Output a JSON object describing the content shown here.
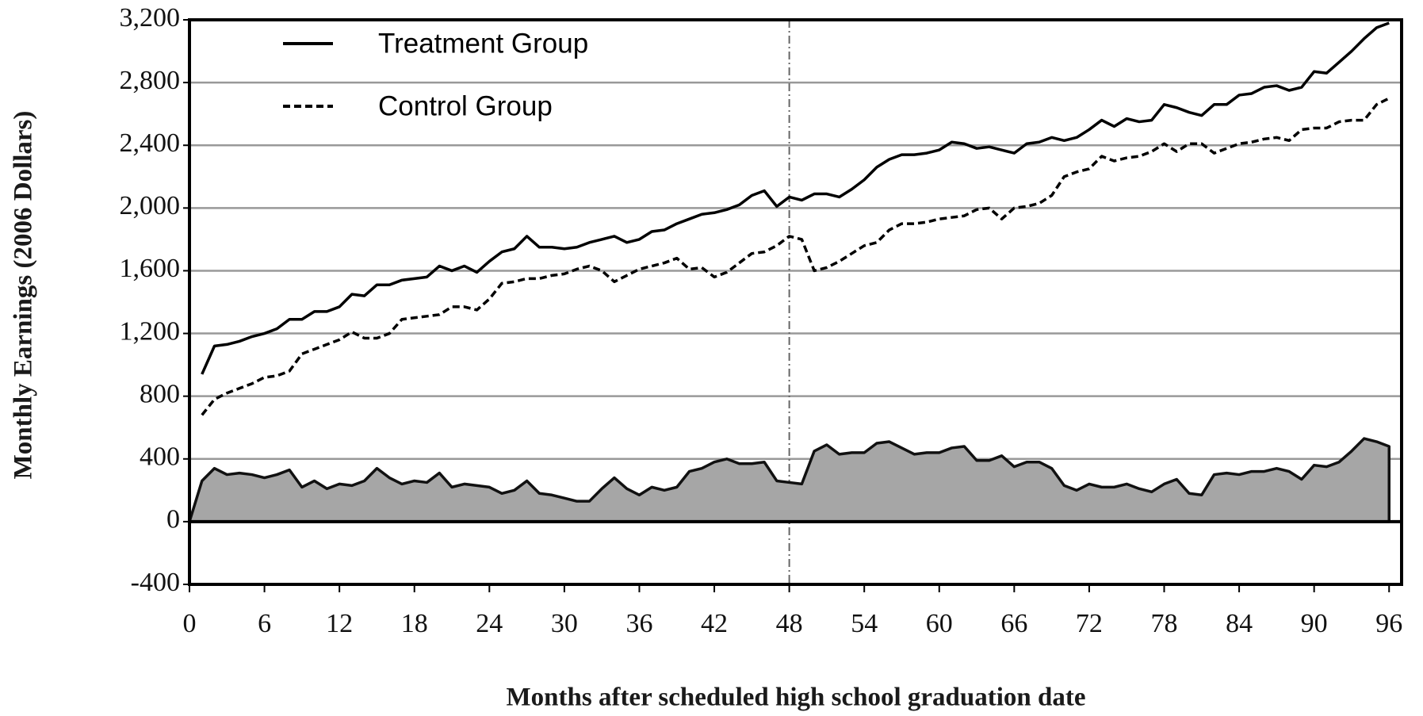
{
  "chart_data": {
    "type": "line",
    "xlabel": "Months after scheduled high school graduation date",
    "ylabel": "Monthly Earnings (2006 Dollars)",
    "xlim": [
      0,
      97
    ],
    "xticks": [
      0,
      6,
      12,
      18,
      24,
      30,
      36,
      42,
      48,
      54,
      60,
      66,
      72,
      78,
      84,
      90,
      96
    ],
    "ylim": [
      -400,
      3200
    ],
    "yticks": [
      -400,
      0,
      400,
      800,
      {
        "value": 1200,
        "label": "1,200"
      },
      {
        "value": 1600,
        "label": "1,600"
      },
      {
        "value": 2000,
        "label": "2,000"
      },
      {
        "value": 2400,
        "label": "2,400"
      },
      {
        "value": 2800,
        "label": "2,800"
      },
      {
        "value": 3200,
        "label": "3,200"
      }
    ],
    "grid": true,
    "legend": "upper left",
    "reference_line_x": 48,
    "series": [
      {
        "name": "Treatment Group",
        "color": "#000000",
        "style": "solid",
        "x": [
          1,
          2,
          3,
          4,
          5,
          6,
          7,
          8,
          9,
          10,
          11,
          12,
          13,
          14,
          15,
          16,
          17,
          18,
          19,
          20,
          21,
          22,
          23,
          24,
          25,
          26,
          27,
          28,
          29,
          30,
          31,
          32,
          33,
          34,
          35,
          36,
          37,
          38,
          39,
          40,
          41,
          42,
          43,
          44,
          45,
          46,
          47,
          48,
          49,
          50,
          51,
          52,
          53,
          54,
          55,
          56,
          57,
          58,
          59,
          60,
          61,
          62,
          63,
          64,
          65,
          66,
          67,
          68,
          69,
          70,
          71,
          72,
          73,
          74,
          75,
          76,
          77,
          78,
          79,
          80,
          81,
          82,
          83,
          84,
          85,
          86,
          87,
          88,
          89,
          90,
          91,
          92,
          93,
          94,
          95,
          96
        ],
        "values": [
          940,
          1120,
          1130,
          1150,
          1180,
          1200,
          1230,
          1290,
          1290,
          1340,
          1340,
          1370,
          1450,
          1440,
          1510,
          1510,
          1540,
          1550,
          1560,
          1630,
          1600,
          1630,
          1590,
          1660,
          1720,
          1740,
          1820,
          1750,
          1750,
          1740,
          1750,
          1780,
          1800,
          1820,
          1780,
          1800,
          1850,
          1860,
          1900,
          1930,
          1960,
          1970,
          1990,
          2020,
          2080,
          2110,
          2010,
          2070,
          2050,
          2090,
          2090,
          2070,
          2120,
          2180,
          2260,
          2310,
          2340,
          2340,
          2350,
          2370,
          2420,
          2410,
          2380,
          2390,
          2370,
          2350,
          2410,
          2420,
          2450,
          2430,
          2450,
          2500,
          2560,
          2520,
          2570,
          2550,
          2560,
          2660,
          2640,
          2610,
          2590,
          2660,
          2660,
          2720,
          2730,
          2770,
          2780,
          2750,
          2770,
          2870,
          2860,
          2930,
          3000,
          3080,
          3150,
          3180
        ]
      },
      {
        "name": "Control Group",
        "color": "#000000",
        "style": "dashed",
        "x": [
          1,
          2,
          3,
          4,
          5,
          6,
          7,
          8,
          9,
          10,
          11,
          12,
          13,
          14,
          15,
          16,
          17,
          18,
          19,
          20,
          21,
          22,
          23,
          24,
          25,
          26,
          27,
          28,
          29,
          30,
          31,
          32,
          33,
          34,
          35,
          36,
          37,
          38,
          39,
          40,
          41,
          42,
          43,
          44,
          45,
          46,
          47,
          48,
          49,
          50,
          51,
          52,
          53,
          54,
          55,
          56,
          57,
          58,
          59,
          60,
          61,
          62,
          63,
          64,
          65,
          66,
          67,
          68,
          69,
          70,
          71,
          72,
          73,
          74,
          75,
          76,
          77,
          78,
          79,
          80,
          81,
          82,
          83,
          84,
          85,
          86,
          87,
          88,
          89,
          90,
          91,
          92,
          93,
          94,
          95,
          96
        ],
        "values": [
          680,
          780,
          820,
          850,
          880,
          920,
          930,
          960,
          1070,
          1100,
          1130,
          1160,
          1210,
          1170,
          1170,
          1200,
          1290,
          1300,
          1310,
          1320,
          1370,
          1370,
          1350,
          1420,
          1520,
          1530,
          1550,
          1550,
          1570,
          1580,
          1610,
          1630,
          1600,
          1530,
          1570,
          1610,
          1630,
          1650,
          1680,
          1610,
          1620,
          1560,
          1590,
          1650,
          1710,
          1720,
          1760,
          1820,
          1800,
          1600,
          1620,
          1660,
          1710,
          1760,
          1780,
          1860,
          1900,
          1900,
          1910,
          1930,
          1940,
          1950,
          1990,
          2000,
          1930,
          2000,
          2010,
          2030,
          2080,
          2200,
          2230,
          2250,
          2330,
          2300,
          2320,
          2330,
          2360,
          2410,
          2360,
          2410,
          2410,
          2350,
          2380,
          2410,
          2420,
          2440,
          2450,
          2430,
          2500,
          2510,
          2510,
          2550,
          2560,
          2560,
          2660,
          2700
        ]
      },
      {
        "color": "#a6a6a6",
        "style": "area",
        "x": [
          0,
          1,
          2,
          3,
          4,
          5,
          6,
          7,
          8,
          9,
          10,
          11,
          12,
          13,
          14,
          15,
          16,
          17,
          18,
          19,
          20,
          21,
          22,
          23,
          24,
          25,
          26,
          27,
          28,
          29,
          30,
          31,
          32,
          33,
          34,
          35,
          36,
          37,
          38,
          39,
          40,
          41,
          42,
          43,
          44,
          45,
          46,
          47,
          48,
          49,
          50,
          51,
          52,
          53,
          54,
          55,
          56,
          57,
          58,
          59,
          60,
          61,
          62,
          63,
          64,
          65,
          66,
          67,
          68,
          69,
          70,
          71,
          72,
          73,
          74,
          75,
          76,
          77,
          78,
          79,
          80,
          81,
          82,
          83,
          84,
          85,
          86,
          87,
          88,
          89,
          90,
          91,
          92,
          93,
          94,
          95,
          96
        ],
        "values": [
          0,
          260,
          340,
          300,
          310,
          300,
          280,
          300,
          330,
          220,
          260,
          210,
          240,
          230,
          260,
          340,
          280,
          240,
          260,
          250,
          310,
          220,
          240,
          230,
          220,
          180,
          200,
          260,
          180,
          170,
          150,
          130,
          130,
          210,
          280,
          210,
          170,
          220,
          200,
          220,
          320,
          340,
          380,
          400,
          370,
          370,
          380,
          260,
          250,
          240,
          450,
          490,
          430,
          440,
          440,
          500,
          510,
          470,
          430,
          440,
          440,
          470,
          480,
          390,
          390,
          420,
          350,
          380,
          380,
          340,
          230,
          200,
          240,
          220,
          220,
          240,
          210,
          190,
          240,
          270,
          180,
          170,
          300,
          310,
          300,
          320,
          320,
          340,
          320,
          270,
          360,
          350,
          380,
          450,
          530,
          510,
          480
        ]
      }
    ]
  }
}
